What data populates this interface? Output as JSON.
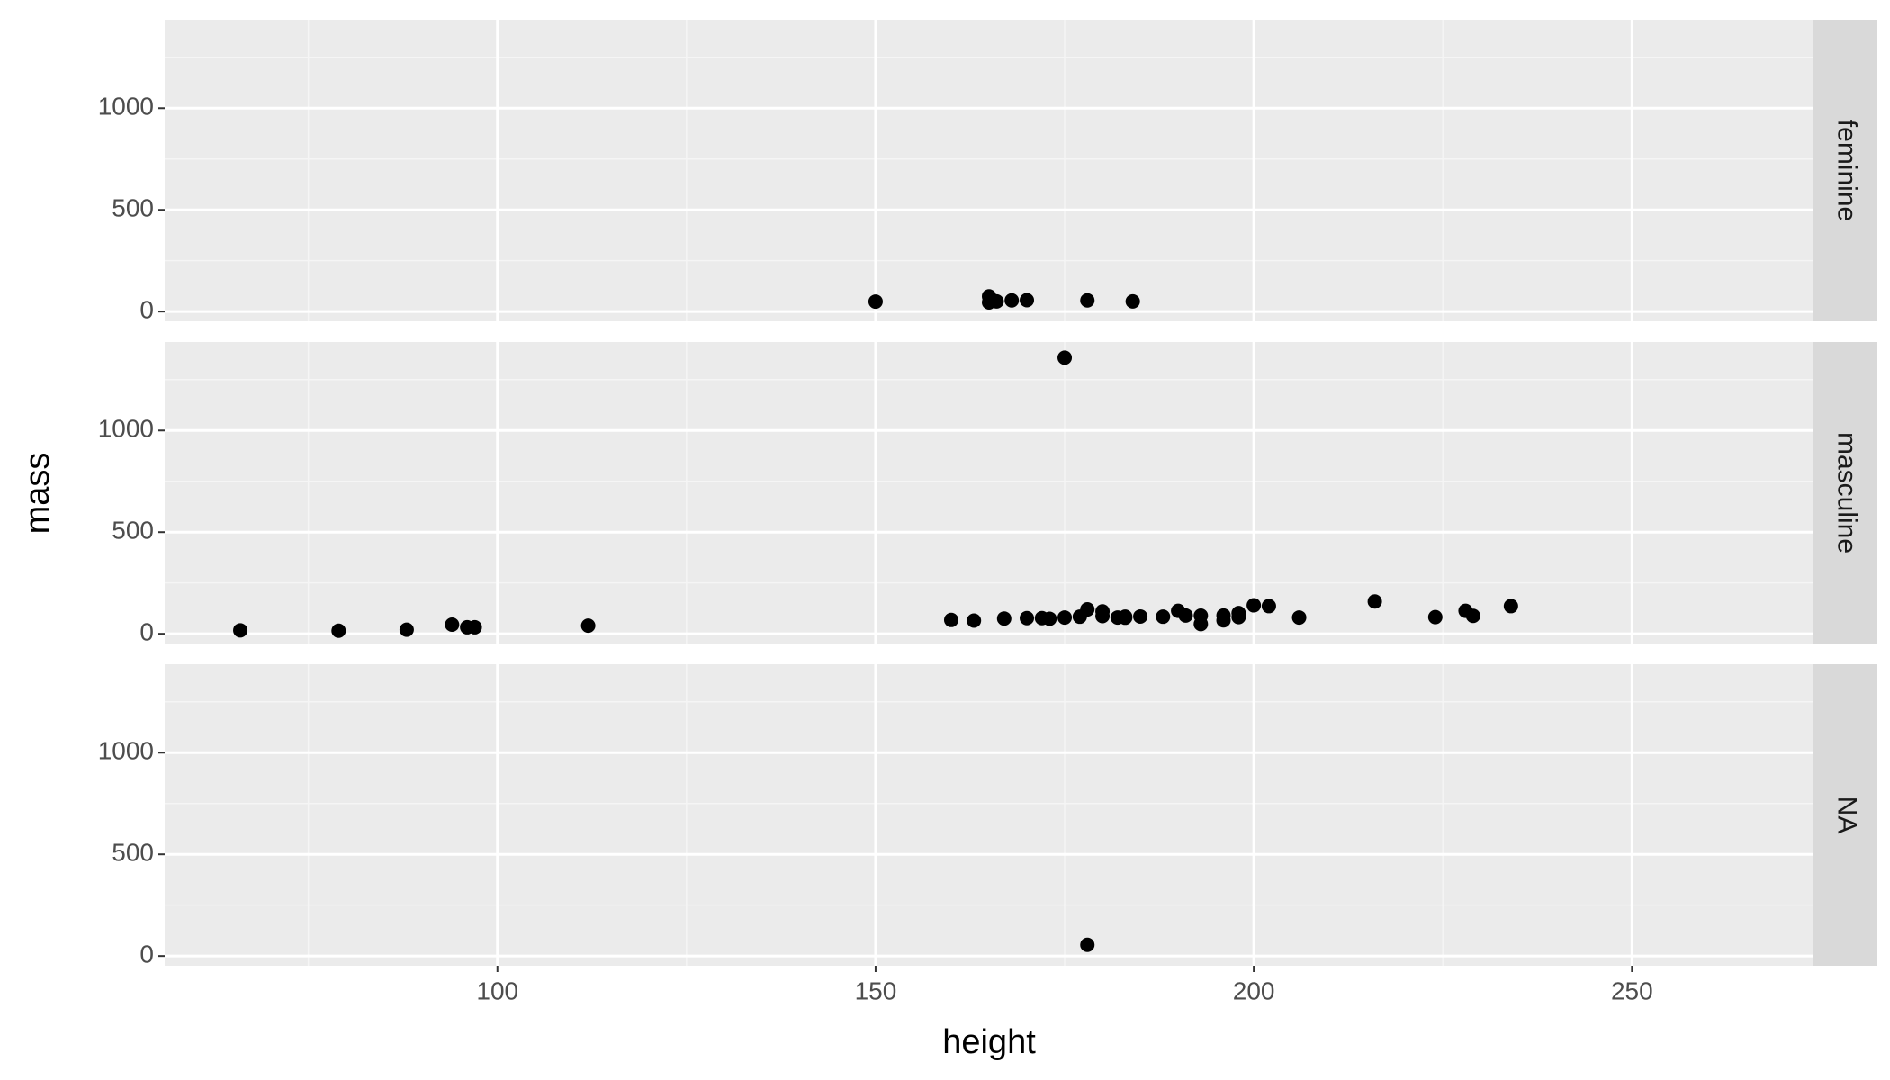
{
  "chart_data": {
    "type": "scatter",
    "x_label": "height",
    "y_label": "mass",
    "xlim": [
      56,
      274
    ],
    "ylim": [
      -48,
      1435
    ],
    "xticks": [
      100,
      150,
      200,
      250
    ],
    "yticks": [
      0,
      500,
      1000
    ],
    "grid": true,
    "color": "#000000",
    "panels": [
      {
        "label": "feminine",
        "x": [
          150,
          165,
          165,
          166,
          168,
          170,
          178,
          184
        ],
        "y": [
          49,
          75,
          45,
          50,
          55,
          56,
          55,
          50
        ]
      },
      {
        "label": "masculine",
        "x": [
          66,
          79,
          88,
          94,
          96,
          97,
          112,
          160,
          163,
          167,
          170,
          172,
          173,
          175,
          175,
          177,
          178,
          180,
          180,
          182,
          183,
          183,
          185,
          188,
          190,
          191,
          193,
          193,
          196,
          196,
          198,
          198,
          200,
          202,
          206,
          216,
          224,
          228,
          229,
          234
        ],
        "y": [
          17,
          15,
          20,
          45,
          32,
          32,
          40,
          68,
          65,
          75,
          77,
          77,
          74,
          80,
          1358,
          84,
          120,
          110,
          87,
          80,
          79,
          84,
          85,
          84,
          113,
          90,
          89,
          48,
          66,
          90,
          102,
          82,
          140,
          136,
          80,
          159,
          82,
          113,
          88,
          136
        ]
      },
      {
        "label": "NA",
        "x": [
          178
        ],
        "y": [
          55
        ]
      }
    ]
  }
}
